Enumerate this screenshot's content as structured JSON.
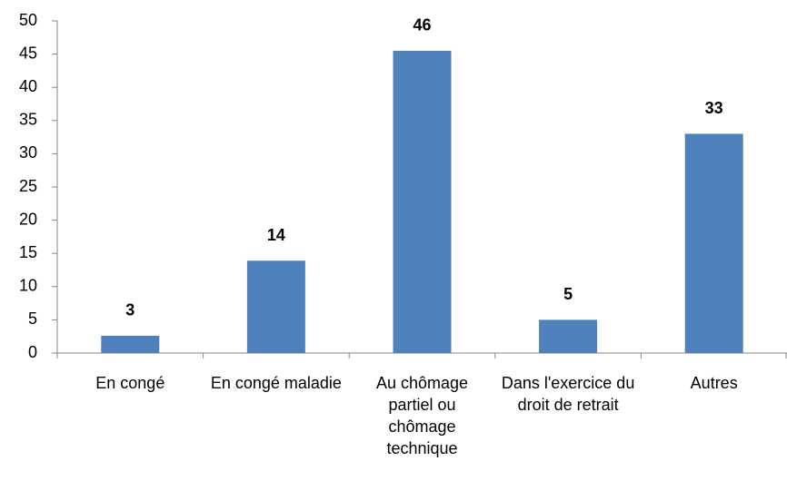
{
  "chart_data": {
    "type": "bar",
    "categories": [
      "En congé",
      "En congé maladie",
      "Au chômage partiel ou chômage technique",
      "Dans l'exercice du droit de retrait",
      "Autres"
    ],
    "values": [
      2.6,
      13.9,
      45.5,
      5,
      33
    ],
    "value_labels": [
      "3",
      "14",
      "46",
      "5",
      "33"
    ],
    "color": "#4f81bd",
    "ylim": [
      0,
      50
    ],
    "yticks": [
      0,
      5,
      10,
      15,
      20,
      25,
      30,
      35,
      40,
      45,
      50
    ],
    "grid": false
  }
}
